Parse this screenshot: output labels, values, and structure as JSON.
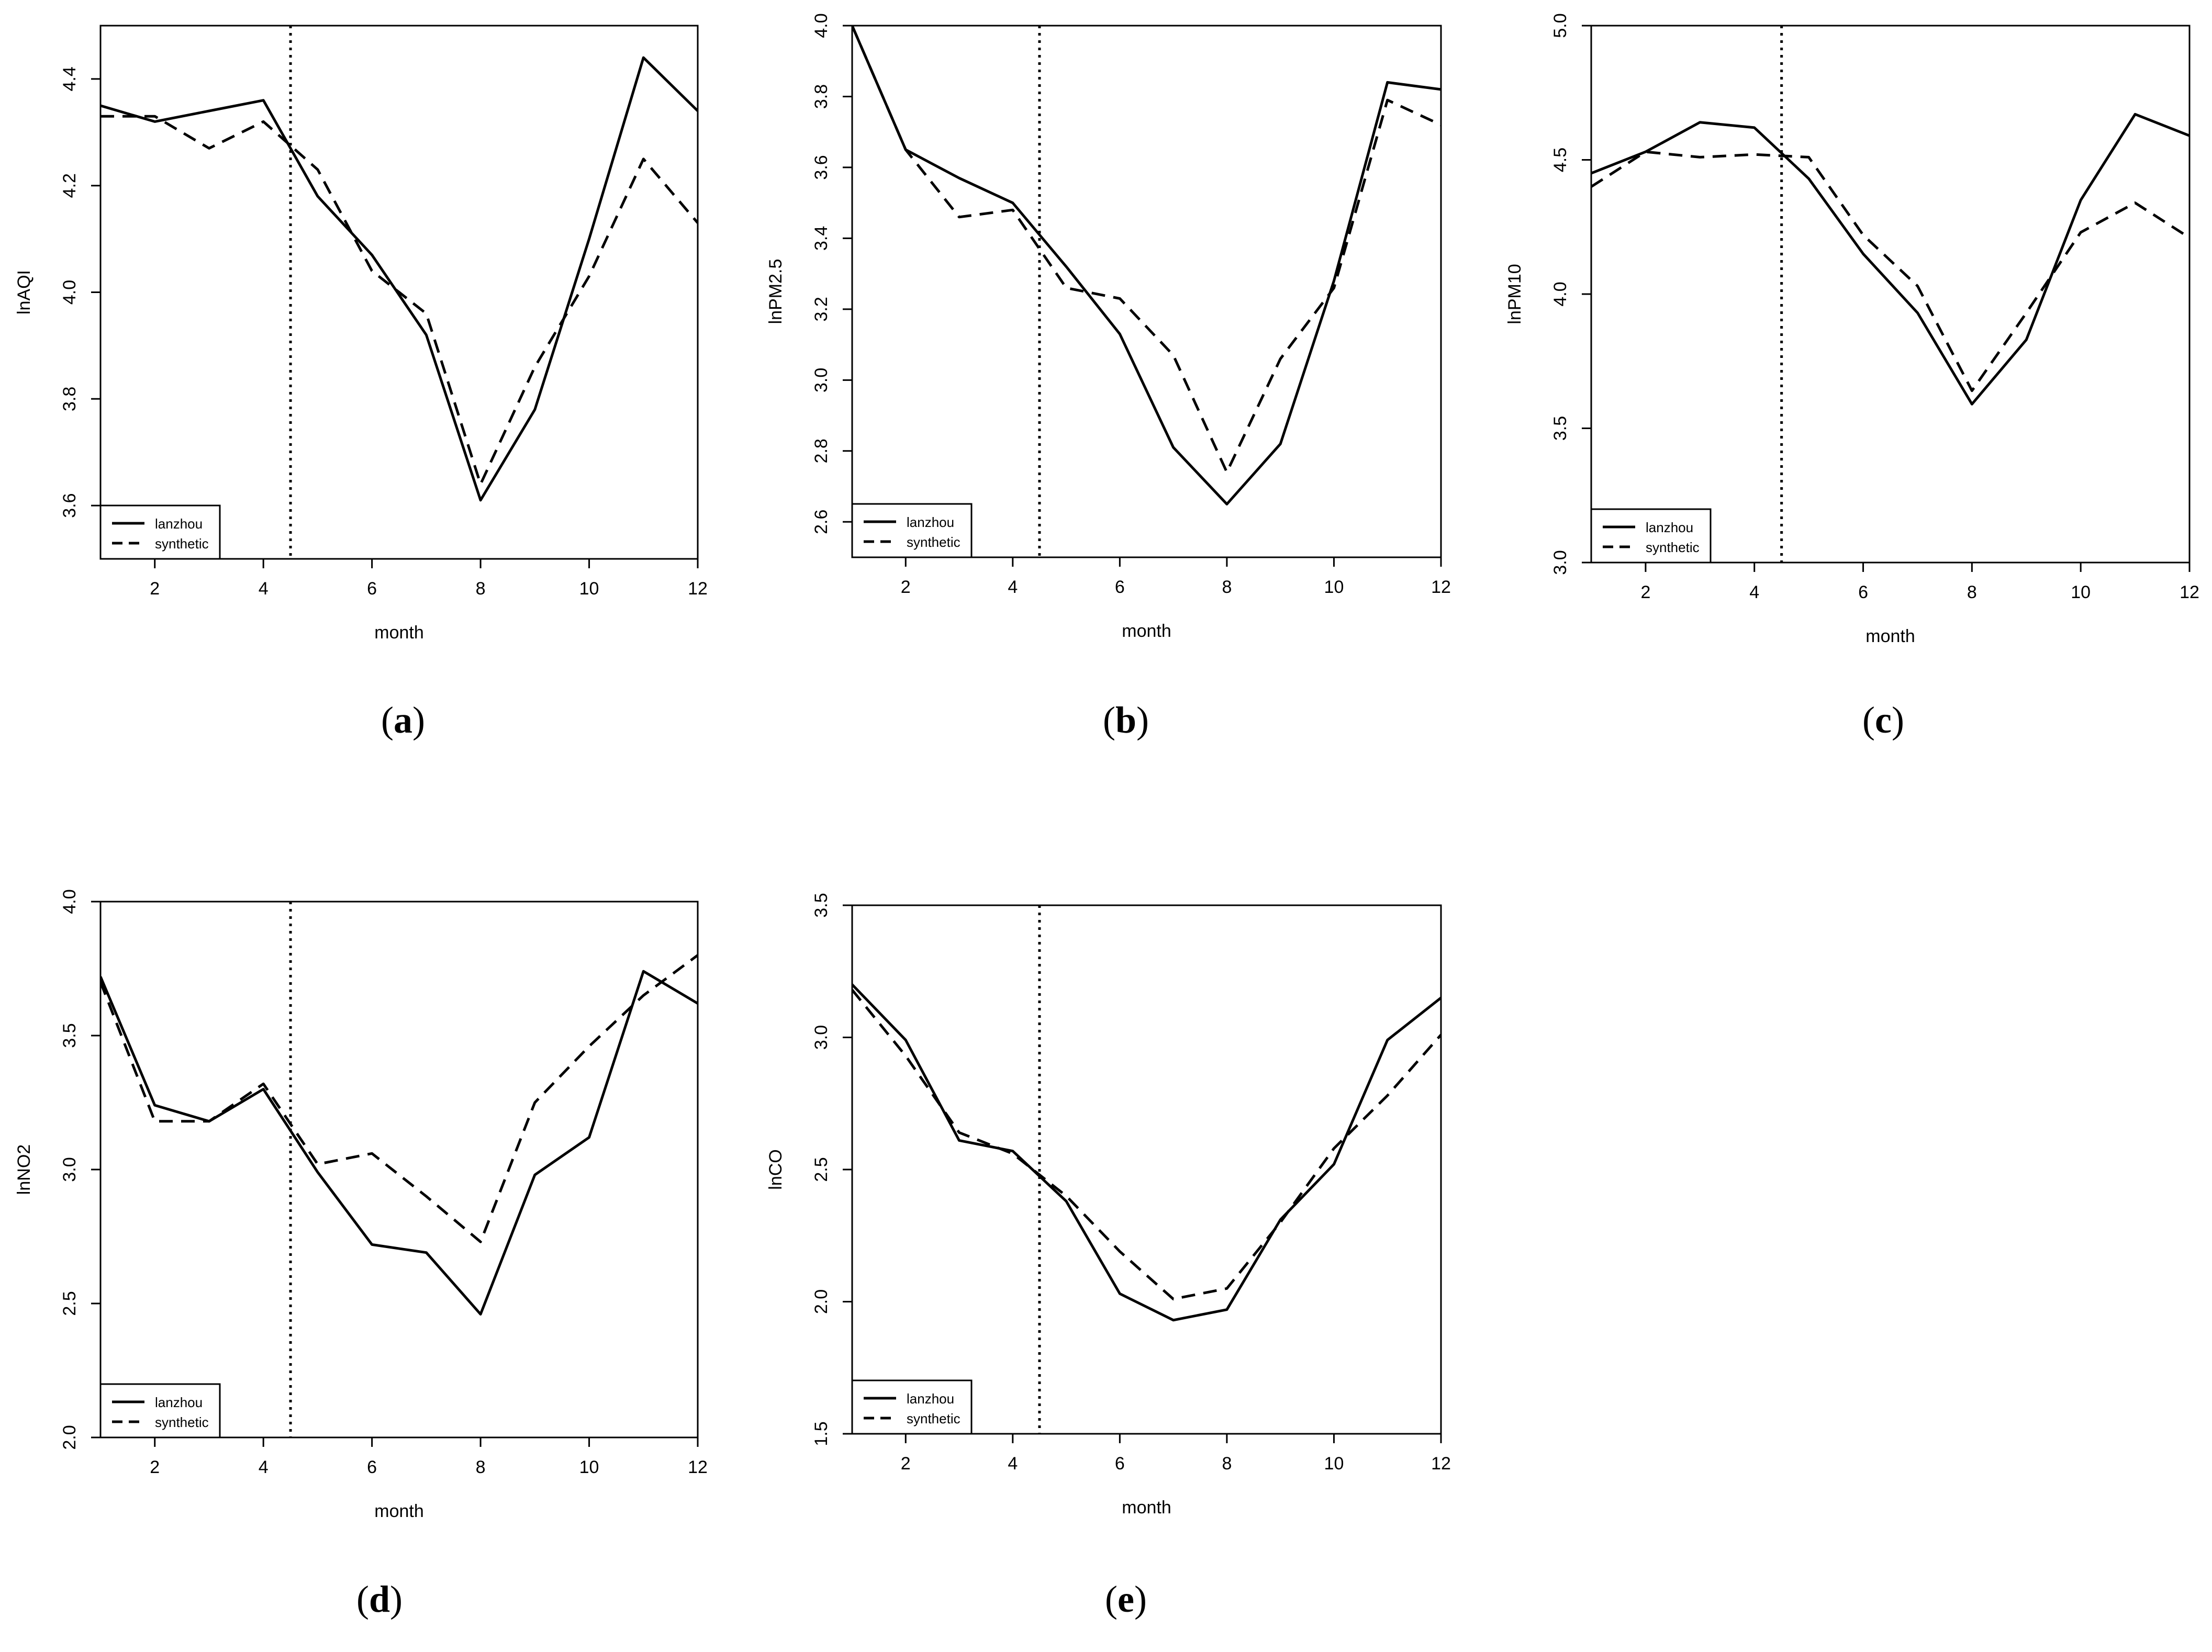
{
  "chart_data": [
    {
      "type": "line",
      "panel_label": "a",
      "xlabel": "month",
      "ylabel": "lnAQI",
      "xlim": [
        1,
        12
      ],
      "ylim": [
        3.5,
        4.5
      ],
      "xticks": [
        2,
        4,
        6,
        8,
        10,
        12
      ],
      "yticks": [
        3.6,
        3.8,
        4.0,
        4.2,
        4.4
      ],
      "vline": 4.5,
      "legend_position": "bottom-left",
      "x": [
        1,
        2,
        3,
        4,
        5,
        6,
        7,
        8,
        9,
        10,
        11,
        12
      ],
      "series": [
        {
          "name": "lanzhou",
          "style": "solid",
          "values": [
            4.35,
            4.32,
            4.34,
            4.36,
            4.18,
            4.07,
            3.92,
            3.61,
            3.78,
            4.1,
            4.44,
            4.34
          ]
        },
        {
          "name": "synthetic",
          "style": "dashed",
          "values": [
            4.33,
            4.33,
            4.27,
            4.32,
            4.23,
            4.04,
            3.96,
            3.64,
            3.86,
            4.03,
            4.25,
            4.13
          ]
        }
      ]
    },
    {
      "type": "line",
      "panel_label": "b",
      "xlabel": "month",
      "ylabel": "lnPM2.5",
      "xlim": [
        1,
        12
      ],
      "ylim": [
        2.5,
        4.0
      ],
      "xticks": [
        2,
        4,
        6,
        8,
        10,
        12
      ],
      "yticks": [
        2.6,
        2.8,
        3.0,
        3.2,
        3.4,
        3.6,
        3.8,
        4.0
      ],
      "vline": 4.5,
      "legend_position": "bottom-left",
      "x": [
        1,
        2,
        3,
        4,
        5,
        6,
        7,
        8,
        9,
        10,
        11,
        12
      ],
      "series": [
        {
          "name": "lanzhou",
          "style": "solid",
          "values": [
            4.0,
            3.65,
            3.57,
            3.5,
            3.32,
            3.13,
            2.81,
            2.65,
            2.82,
            3.28,
            3.84,
            3.82
          ]
        },
        {
          "name": "synthetic",
          "style": "dashed",
          "values": [
            4.0,
            3.65,
            3.46,
            3.48,
            3.26,
            3.23,
            3.07,
            2.74,
            3.06,
            3.26,
            3.79,
            3.72
          ]
        }
      ]
    },
    {
      "type": "line",
      "panel_label": "c",
      "xlabel": "month",
      "ylabel": "lnPM10",
      "xlim": [
        1,
        12
      ],
      "ylim": [
        3.0,
        5.0
      ],
      "xticks": [
        2,
        4,
        6,
        8,
        10,
        12
      ],
      "yticks": [
        3.0,
        3.5,
        4.0,
        4.5,
        5.0
      ],
      "vline": 4.5,
      "legend_position": "bottom-left",
      "x": [
        1,
        2,
        3,
        4,
        5,
        6,
        7,
        8,
        9,
        10,
        11,
        12
      ],
      "series": [
        {
          "name": "lanzhou",
          "style": "solid",
          "values": [
            4.45,
            4.53,
            4.64,
            4.62,
            4.43,
            4.15,
            3.93,
            3.59,
            3.83,
            4.35,
            4.67,
            4.59
          ]
        },
        {
          "name": "synthetic",
          "style": "dashed",
          "values": [
            4.4,
            4.53,
            4.51,
            4.52,
            4.51,
            4.22,
            4.03,
            3.64,
            3.93,
            4.23,
            4.34,
            4.21
          ]
        }
      ]
    },
    {
      "type": "line",
      "panel_label": "d",
      "xlabel": "month",
      "ylabel": "lnNO2",
      "xlim": [
        1,
        12
      ],
      "ylim": [
        2.0,
        4.0
      ],
      "xticks": [
        2,
        4,
        6,
        8,
        10,
        12
      ],
      "yticks": [
        2.0,
        2.5,
        3.0,
        3.5,
        4.0
      ],
      "vline": 4.5,
      "legend_position": "bottom-left",
      "x": [
        1,
        2,
        3,
        4,
        5,
        6,
        7,
        8,
        9,
        10,
        11,
        12
      ],
      "series": [
        {
          "name": "lanzhou",
          "style": "solid",
          "values": [
            3.72,
            3.24,
            3.18,
            3.3,
            2.99,
            2.72,
            2.69,
            2.46,
            2.98,
            3.12,
            3.74,
            3.62
          ]
        },
        {
          "name": "synthetic",
          "style": "dashed",
          "values": [
            3.7,
            3.18,
            3.18,
            3.32,
            3.02,
            3.06,
            2.9,
            2.73,
            3.25,
            3.46,
            3.65,
            3.8
          ]
        }
      ]
    },
    {
      "type": "line",
      "panel_label": "e",
      "xlabel": "month",
      "ylabel": "lnCO",
      "xlim": [
        1,
        12
      ],
      "ylim": [
        1.5,
        3.5
      ],
      "xticks": [
        2,
        4,
        6,
        8,
        10,
        12
      ],
      "yticks": [
        1.5,
        2.0,
        2.5,
        3.0,
        3.5
      ],
      "vline": 4.5,
      "legend_position": "bottom-left",
      "x": [
        1,
        2,
        3,
        4,
        5,
        6,
        7,
        8,
        9,
        10,
        11,
        12
      ],
      "series": [
        {
          "name": "lanzhou",
          "style": "solid",
          "values": [
            3.2,
            2.99,
            2.61,
            2.57,
            2.38,
            2.03,
            1.93,
            1.97,
            2.31,
            2.52,
            2.99,
            3.15
          ]
        },
        {
          "name": "synthetic",
          "style": "dashed",
          "values": [
            3.18,
            2.93,
            2.64,
            2.56,
            2.4,
            2.19,
            2.01,
            2.05,
            2.3,
            2.58,
            2.78,
            3.01
          ]
        }
      ]
    }
  ]
}
